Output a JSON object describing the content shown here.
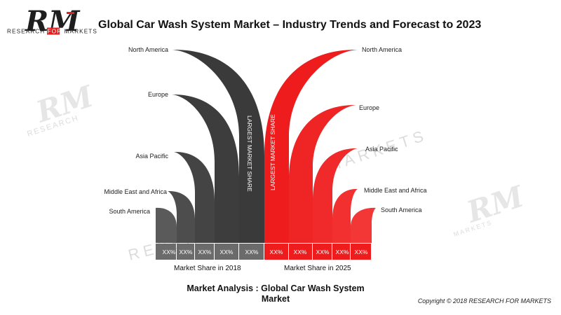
{
  "logo": {
    "letters": "RM",
    "tagline_left": "RESEARCH ",
    "tagline_highlight": "FOR",
    "tagline_right": " MARKETS",
    "color_dark": "#1e1e1e",
    "color_accent": "#e02020"
  },
  "watermark": {
    "letters": "RM",
    "word_research": "RESEARCH",
    "word_markets": "MARKETS"
  },
  "chart_data": {
    "type": "bar",
    "title": "Global Car Wash System Market – Industry Trends and Forecast to 2023",
    "left": {
      "axis_label": "Market Share in 2018",
      "color": "#3a3a3a",
      "highlight_label": "LARGEST MARKET SHARE",
      "bars": [
        {
          "region": "South America",
          "value_label": "XX%"
        },
        {
          "region": "Middle East and Africa",
          "value_label": "XX%"
        },
        {
          "region": "Asia Pacific",
          "value_label": "XX%"
        },
        {
          "region": "Europe",
          "value_label": "XX%"
        },
        {
          "region": "North America",
          "value_label": "XX%"
        }
      ]
    },
    "right": {
      "axis_label": "Market Share in 2025",
      "color": "#ee1c1c",
      "highlight_label": "LARGEST MARKET SHARE",
      "bars": [
        {
          "region": "North America",
          "value_label": "XX%"
        },
        {
          "region": "Europe",
          "value_label": "XX%"
        },
        {
          "region": "Asia Pacific",
          "value_label": "XX%"
        },
        {
          "region": "Middle East and Africa",
          "value_label": "XX%"
        },
        {
          "region": "South America",
          "value_label": "XX%"
        }
      ]
    }
  },
  "footer": {
    "analysis_line1": "Market Analysis : Global Car Wash System",
    "analysis_line2": "Market",
    "copyright": "Copyright © 2018 RESEARCH FOR MARKETS"
  }
}
